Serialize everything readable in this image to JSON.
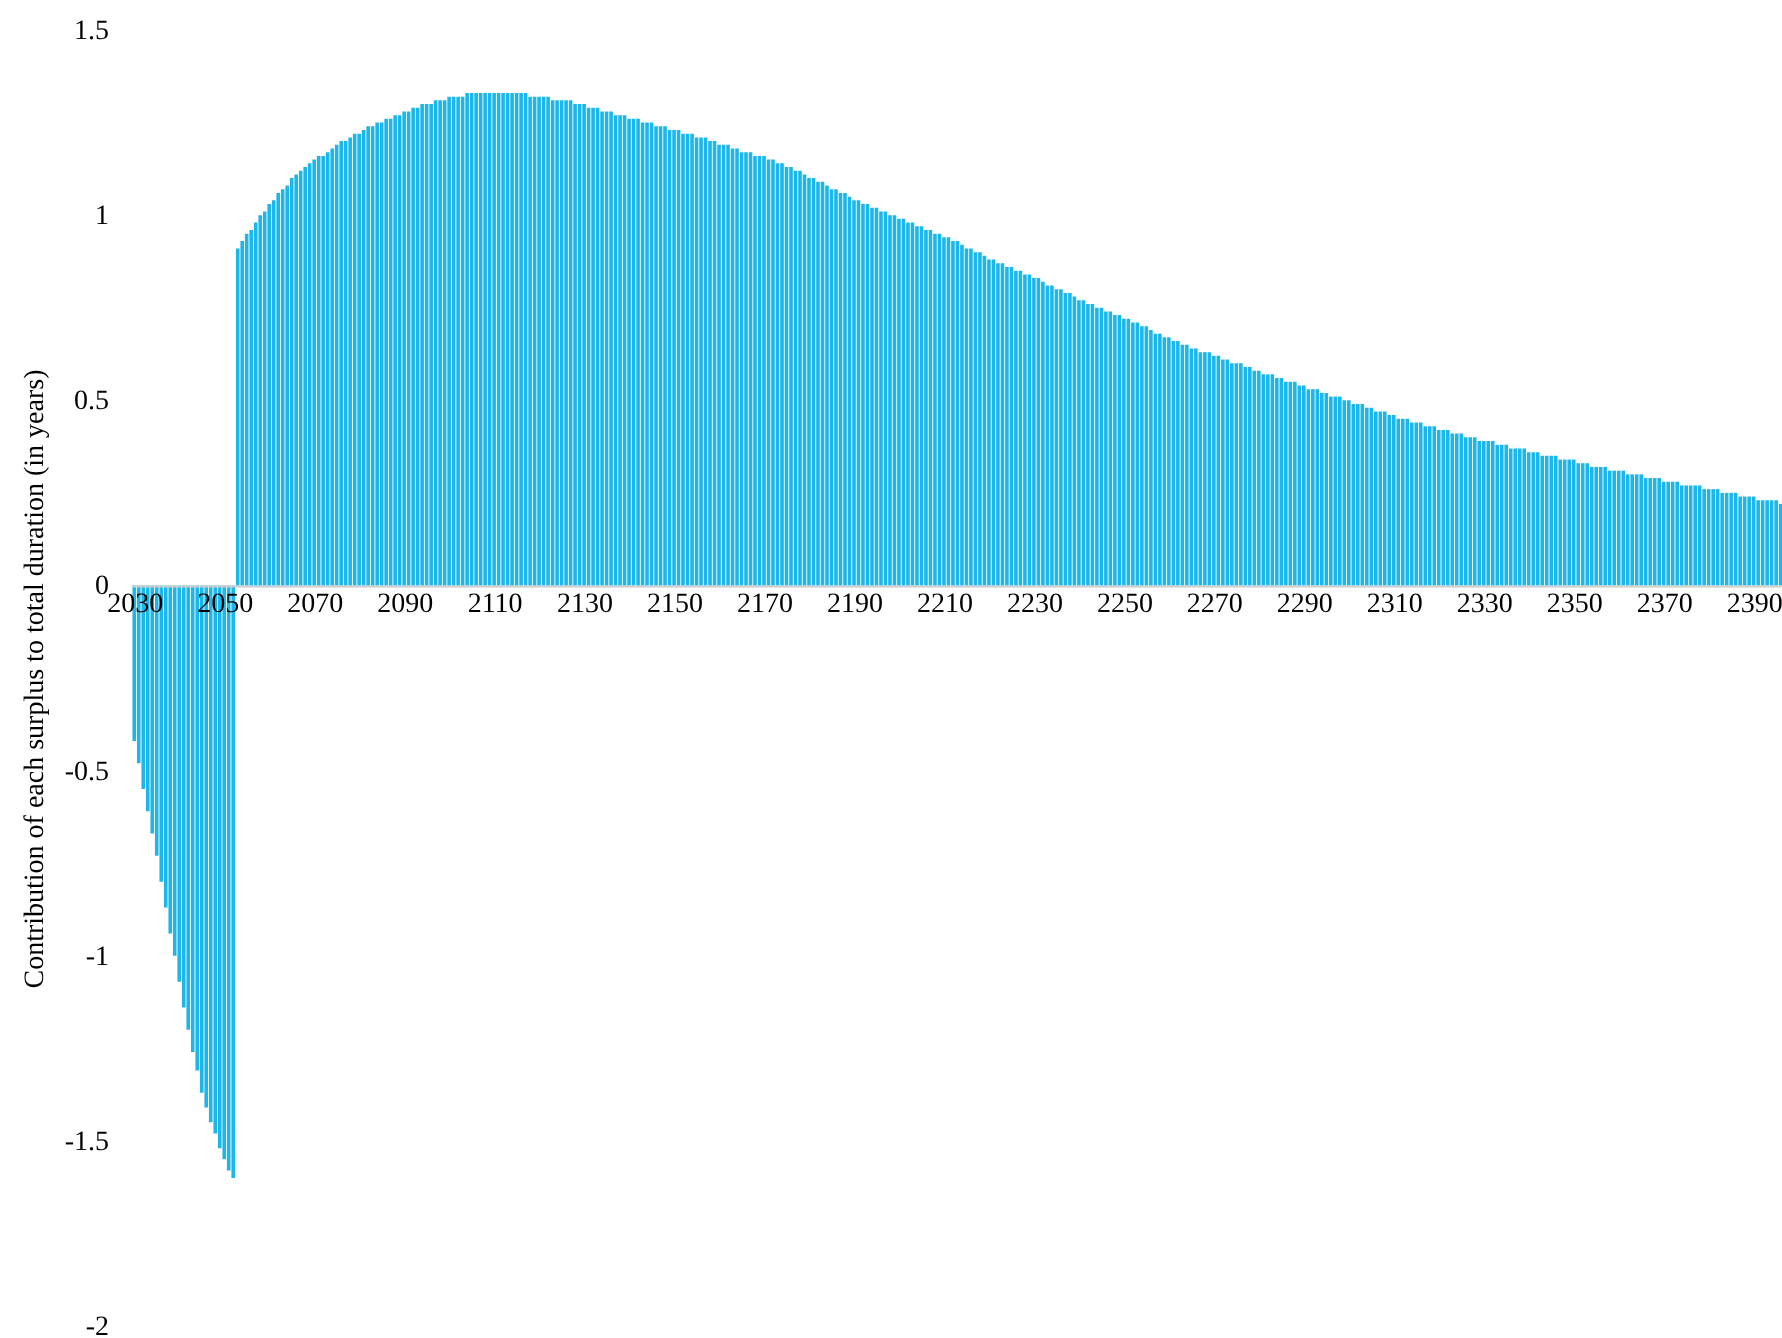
{
  "chart_data": {
    "type": "bar",
    "ylabel": "Contribution of each surplus to total duration (in years)",
    "x": [
      2030,
      2031,
      2032,
      2033,
      2034,
      2035,
      2036,
      2037,
      2038,
      2039,
      2040,
      2041,
      2042,
      2043,
      2044,
      2045,
      2046,
      2047,
      2048,
      2049,
      2050,
      2051,
      2052,
      2053,
      2054,
      2055,
      2056,
      2057,
      2058,
      2059,
      2060,
      2061,
      2062,
      2063,
      2064,
      2065,
      2066,
      2067,
      2068,
      2069,
      2070,
      2071,
      2072,
      2073,
      2074,
      2075,
      2076,
      2077,
      2078,
      2079,
      2080,
      2081,
      2082,
      2083,
      2084,
      2085,
      2086,
      2087,
      2088,
      2089,
      2090,
      2091,
      2092,
      2093,
      2094,
      2095,
      2096,
      2097,
      2098,
      2099,
      2100,
      2101,
      2102,
      2103,
      2104,
      2105,
      2106,
      2107,
      2108,
      2109,
      2110,
      2111,
      2112,
      2113,
      2114,
      2115,
      2116,
      2117,
      2118,
      2119,
      2120,
      2121,
      2122,
      2123,
      2124,
      2125,
      2126,
      2127,
      2128,
      2129,
      2130,
      2131,
      2132,
      2133,
      2134,
      2135,
      2136,
      2137,
      2138,
      2139,
      2140,
      2141,
      2142,
      2143,
      2144,
      2145,
      2146,
      2147,
      2148,
      2149,
      2150,
      2151,
      2152,
      2153,
      2154,
      2155,
      2156,
      2157,
      2158,
      2159,
      2160,
      2161,
      2162,
      2163,
      2164,
      2165,
      2166,
      2167,
      2168,
      2169,
      2170,
      2171,
      2172,
      2173,
      2174,
      2175,
      2176,
      2177,
      2178,
      2179,
      2180,
      2181,
      2182,
      2183,
      2184,
      2185,
      2186,
      2187,
      2188,
      2189,
      2190,
      2191,
      2192,
      2193,
      2194,
      2195,
      2196,
      2197,
      2198,
      2199,
      2200,
      2201,
      2202,
      2203,
      2204,
      2205,
      2206,
      2207,
      2208,
      2209,
      2210,
      2211,
      2212,
      2213,
      2214,
      2215,
      2216,
      2217,
      2218,
      2219,
      2220,
      2221,
      2222,
      2223,
      2224,
      2225,
      2226,
      2227,
      2228,
      2229,
      2230,
      2231,
      2232,
      2233,
      2234,
      2235,
      2236,
      2237,
      2238,
      2239,
      2240,
      2241,
      2242,
      2243,
      2244,
      2245,
      2246,
      2247,
      2248,
      2249,
      2250,
      2251,
      2252,
      2253,
      2254,
      2255,
      2256,
      2257,
      2258,
      2259,
      2260,
      2261,
      2262,
      2263,
      2264,
      2265,
      2266,
      2267,
      2268,
      2269,
      2270,
      2271,
      2272,
      2273,
      2274,
      2275,
      2276,
      2277,
      2278,
      2279,
      2280,
      2281,
      2282,
      2283,
      2284,
      2285,
      2286,
      2287,
      2288,
      2289,
      2290,
      2291,
      2292,
      2293,
      2294,
      2295,
      2296,
      2297,
      2298,
      2299,
      2300,
      2301,
      2302,
      2303,
      2304,
      2305,
      2306,
      2307,
      2308,
      2309,
      2310,
      2311,
      2312,
      2313,
      2314,
      2315,
      2316,
      2317,
      2318,
      2319,
      2320,
      2321,
      2322,
      2323,
      2324,
      2325,
      2326,
      2327,
      2328,
      2329,
      2330,
      2331,
      2332,
      2333,
      2334,
      2335,
      2336,
      2337,
      2338,
      2339,
      2340,
      2341,
      2342,
      2343,
      2344,
      2345,
      2346,
      2347,
      2348,
      2349,
      2350,
      2351,
      2352,
      2353,
      2354,
      2355,
      2356,
      2357,
      2358,
      2359,
      2360,
      2361,
      2362,
      2363,
      2364,
      2365,
      2366,
      2367,
      2368,
      2369,
      2370,
      2371,
      2372,
      2373,
      2374,
      2375,
      2376,
      2377,
      2378,
      2379,
      2380,
      2381,
      2382,
      2383,
      2384,
      2385,
      2386,
      2387,
      2388,
      2389,
      2390,
      2391,
      2392,
      2393,
      2394,
      2395,
      2396
    ],
    "series": [
      {
        "color": "#1bb6ea",
        "values": [
          -0.42,
          -0.48,
          -0.55,
          -0.61,
          -0.67,
          -0.73,
          -0.8,
          -0.87,
          -0.94,
          -1.0,
          -1.07,
          -1.14,
          -1.2,
          -1.26,
          -1.31,
          -1.37,
          -1.41,
          -1.45,
          -1.48,
          -1.52,
          -1.55,
          -1.58,
          -1.6,
          0.91,
          0.93,
          0.95,
          0.96,
          0.98,
          1.0,
          1.01,
          1.03,
          1.04,
          1.06,
          1.07,
          1.08,
          1.1,
          1.11,
          1.12,
          1.13,
          1.14,
          1.15,
          1.16,
          1.16,
          1.17,
          1.18,
          1.19,
          1.2,
          1.2,
          1.21,
          1.22,
          1.22,
          1.23,
          1.24,
          1.24,
          1.25,
          1.25,
          1.26,
          1.26,
          1.27,
          1.27,
          1.28,
          1.28,
          1.29,
          1.29,
          1.3,
          1.3,
          1.3,
          1.31,
          1.31,
          1.31,
          1.32,
          1.32,
          1.32,
          1.32,
          1.33,
          1.33,
          1.33,
          1.33,
          1.33,
          1.33,
          1.33,
          1.33,
          1.33,
          1.33,
          1.33,
          1.33,
          1.33,
          1.33,
          1.32,
          1.32,
          1.32,
          1.32,
          1.32,
          1.31,
          1.31,
          1.31,
          1.31,
          1.31,
          1.3,
          1.3,
          1.3,
          1.29,
          1.29,
          1.29,
          1.28,
          1.28,
          1.28,
          1.27,
          1.27,
          1.27,
          1.26,
          1.26,
          1.26,
          1.25,
          1.25,
          1.25,
          1.24,
          1.24,
          1.24,
          1.23,
          1.23,
          1.23,
          1.22,
          1.22,
          1.22,
          1.21,
          1.21,
          1.21,
          1.2,
          1.2,
          1.19,
          1.19,
          1.19,
          1.18,
          1.18,
          1.17,
          1.17,
          1.17,
          1.16,
          1.16,
          1.16,
          1.15,
          1.15,
          1.14,
          1.14,
          1.13,
          1.13,
          1.12,
          1.12,
          1.11,
          1.1,
          1.1,
          1.09,
          1.09,
          1.08,
          1.07,
          1.07,
          1.06,
          1.06,
          1.05,
          1.04,
          1.04,
          1.03,
          1.03,
          1.02,
          1.02,
          1.01,
          1.01,
          1.0,
          1.0,
          0.99,
          0.99,
          0.98,
          0.98,
          0.97,
          0.97,
          0.96,
          0.96,
          0.95,
          0.95,
          0.94,
          0.94,
          0.93,
          0.93,
          0.92,
          0.91,
          0.91,
          0.9,
          0.9,
          0.89,
          0.88,
          0.88,
          0.87,
          0.87,
          0.86,
          0.86,
          0.85,
          0.85,
          0.84,
          0.84,
          0.83,
          0.83,
          0.82,
          0.81,
          0.81,
          0.8,
          0.8,
          0.79,
          0.79,
          0.78,
          0.77,
          0.77,
          0.76,
          0.76,
          0.75,
          0.75,
          0.74,
          0.74,
          0.73,
          0.73,
          0.72,
          0.72,
          0.71,
          0.71,
          0.7,
          0.7,
          0.69,
          0.68,
          0.68,
          0.67,
          0.67,
          0.66,
          0.66,
          0.65,
          0.65,
          0.64,
          0.64,
          0.63,
          0.63,
          0.63,
          0.62,
          0.62,
          0.61,
          0.61,
          0.6,
          0.6,
          0.6,
          0.59,
          0.59,
          0.58,
          0.58,
          0.57,
          0.57,
          0.57,
          0.56,
          0.56,
          0.55,
          0.55,
          0.55,
          0.54,
          0.54,
          0.53,
          0.53,
          0.53,
          0.52,
          0.52,
          0.51,
          0.51,
          0.51,
          0.5,
          0.5,
          0.49,
          0.49,
          0.49,
          0.48,
          0.48,
          0.47,
          0.47,
          0.47,
          0.46,
          0.46,
          0.45,
          0.45,
          0.45,
          0.44,
          0.44,
          0.44,
          0.43,
          0.43,
          0.43,
          0.42,
          0.42,
          0.42,
          0.41,
          0.41,
          0.41,
          0.4,
          0.4,
          0.4,
          0.39,
          0.39,
          0.39,
          0.39,
          0.38,
          0.38,
          0.38,
          0.37,
          0.37,
          0.37,
          0.37,
          0.36,
          0.36,
          0.36,
          0.35,
          0.35,
          0.35,
          0.35,
          0.34,
          0.34,
          0.34,
          0.34,
          0.33,
          0.33,
          0.33,
          0.32,
          0.32,
          0.32,
          0.32,
          0.31,
          0.31,
          0.31,
          0.31,
          0.3,
          0.3,
          0.3,
          0.3,
          0.29,
          0.29,
          0.29,
          0.29,
          0.28,
          0.28,
          0.28,
          0.28,
          0.27,
          0.27,
          0.27,
          0.27,
          0.27,
          0.26,
          0.26,
          0.26,
          0.26,
          0.25,
          0.25,
          0.25,
          0.25,
          0.24,
          0.24,
          0.24,
          0.24,
          0.23,
          0.23,
          0.23,
          0.23,
          0.23,
          0.22
        ]
      }
    ],
    "xlim": [
      2029.5,
      2396.3
    ],
    "xticks": [
      2030,
      2050,
      2070,
      2090,
      2110,
      2130,
      2150,
      2170,
      2190,
      2210,
      2230,
      2250,
      2270,
      2290,
      2310,
      2330,
      2350,
      2370,
      2390
    ],
    "ylim": [
      -2,
      1.5
    ],
    "yticks": [
      -2,
      -1.5,
      -1,
      -0.5,
      0,
      0.5,
      1,
      1.5
    ],
    "grid": false
  }
}
